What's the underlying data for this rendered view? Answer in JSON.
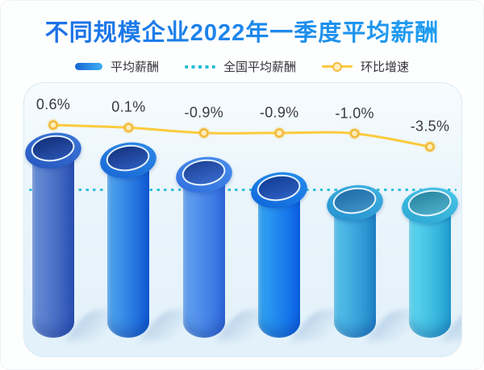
{
  "page": {
    "title": "不同规模企业2022年一季度平均薪酬"
  },
  "legend": {
    "items": [
      {
        "label": "平均薪酬",
        "swatch": "gradient-bar"
      },
      {
        "label": "全国平均薪酬",
        "swatch": "dotted-line"
      },
      {
        "label": "环比增速",
        "swatch": "line-with-marker"
      }
    ]
  },
  "colors": {
    "title_gradient": [
      "#1a6be6",
      "#20a2f2"
    ],
    "legend_bar_swatch": [
      "#1565d0",
      "#3fb0f4"
    ],
    "growth_line": "#fcca3e",
    "growth_marker_fill": "#fcedbd",
    "growth_marker_ring": "#f2bb3e",
    "national_line": "#25bcd8",
    "growth_label_text": "#3a3a42",
    "legend_text": "#32323a",
    "card_border": "#d7ebf3",
    "card_bg_top": "#f7fcfe",
    "card_bg_bottom": "#e2f1fa"
  },
  "chart_data": {
    "type": "bar+line",
    "title": "不同规模企业2022年一季度平均薪酬",
    "legend_position": "top",
    "x_axis_labels_visible": false,
    "y_axis_visible": false,
    "grid": false,
    "series": [
      {
        "name": "平均薪酬",
        "type": "cylinder-bar",
        "values_relative_to_tallest": [
          1.0,
          0.948,
          0.87,
          0.787,
          0.717,
          0.704
        ]
      },
      {
        "name": "环比增速",
        "type": "line",
        "unit": "%",
        "values": [
          0.6,
          0.1,
          -0.9,
          -0.9,
          -1.0,
          -3.5
        ],
        "labels": [
          "0.6%",
          "0.1%",
          "-0.9%",
          "-0.9%",
          "-1.0%",
          "-3.5%"
        ]
      },
      {
        "name": "全国平均薪酬",
        "type": "reference-line",
        "style": "dotted",
        "value_relative_to_tallest": 0.8
      }
    ],
    "bar_styles": [
      {
        "body": [
          "#6d93d8",
          "#2b51b5"
        ],
        "rim": [
          "#3f7ada",
          "#2456be"
        ],
        "inner": [
          "#122e7a",
          "#2b56b2"
        ]
      },
      {
        "body": [
          "#53aaf0",
          "#0f5ad6"
        ],
        "rim": [
          "#2f8ce8",
          "#1766d4"
        ],
        "inner": [
          "#15327e",
          "#2d5dc0"
        ]
      },
      {
        "body": [
          "#66a6f2",
          "#2f6ade"
        ],
        "rim": [
          "#4a90ec",
          "#2f6ede"
        ],
        "inner": [
          "#1c4194",
          "#3a6cd0"
        ]
      },
      {
        "body": [
          "#33a8f4",
          "#0a62e6"
        ],
        "rim": [
          "#2490ee",
          "#0f64d8"
        ],
        "inner": [
          "#103b92",
          "#2f62c4"
        ]
      },
      {
        "body": [
          "#58c6ee",
          "#1f86ca"
        ],
        "rim": [
          "#40b4e4",
          "#2490cc"
        ],
        "inner": [
          "#1f6ba8",
          "#3f93c6"
        ]
      },
      {
        "body": [
          "#62dcf2",
          "#22a2d2"
        ],
        "rim": [
          "#4cc8e8",
          "#2aa6d2"
        ],
        "inner": [
          "#27839f",
          "#4fb0cc"
        ]
      }
    ]
  }
}
